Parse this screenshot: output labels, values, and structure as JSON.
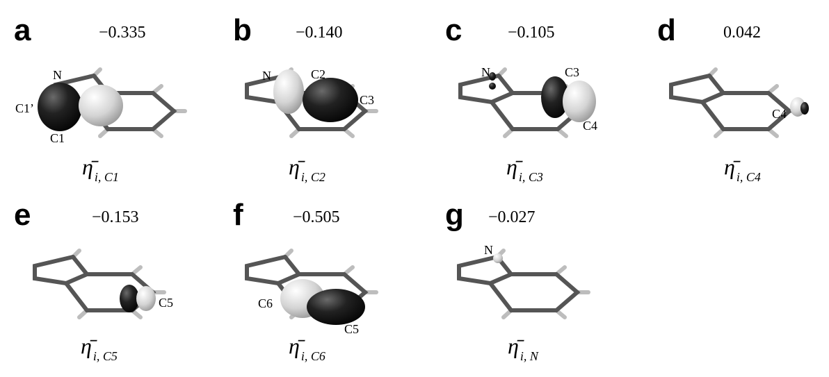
{
  "panels": [
    {
      "label": "a",
      "value": "−0.335",
      "eta_sub": "i, C1",
      "atoms": [
        "N",
        "C1’",
        "C1"
      ]
    },
    {
      "label": "b",
      "value": "−0.140",
      "eta_sub": "i, C2",
      "atoms": [
        "N",
        "C2",
        "C3"
      ]
    },
    {
      "label": "c",
      "value": "−0.105",
      "eta_sub": "i, C3",
      "atoms": [
        "N",
        "C3",
        "C4"
      ]
    },
    {
      "label": "d",
      "value": "0.042",
      "eta_sub": "i, C4",
      "atoms": [
        "C4"
      ]
    },
    {
      "label": "e",
      "value": "−0.153",
      "eta_sub": "i, C5",
      "atoms": [
        "C5"
      ]
    },
    {
      "label": "f",
      "value": "−0.505",
      "eta_sub": "i, C6",
      "atoms": [
        "C6",
        "C5"
      ]
    },
    {
      "label": "g",
      "value": "−0.027",
      "eta_sub": "i, N",
      "atoms": [
        "N"
      ]
    }
  ],
  "eta_symbol": "η̄",
  "colors": {
    "lobe_dark": "#1a1a1a",
    "lobe_light": "#d9d9d9",
    "bond": "#555555",
    "hydrogen": "#bdbdbd"
  }
}
